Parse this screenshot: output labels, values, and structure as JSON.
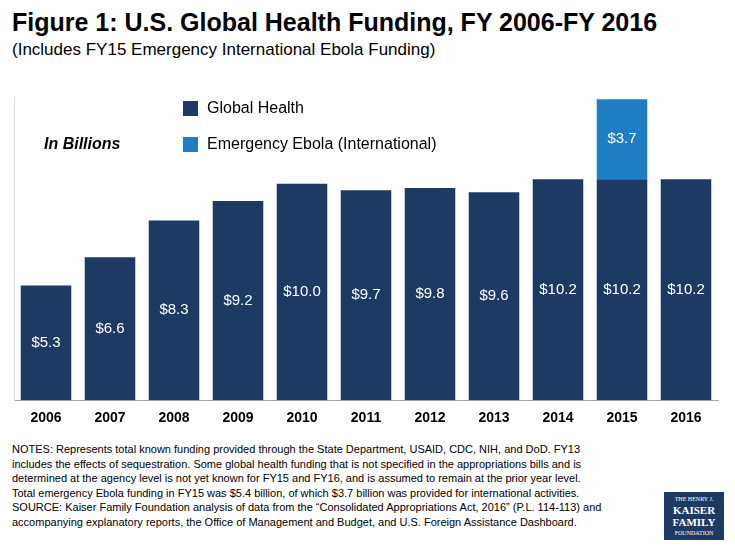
{
  "chart_data": {
    "type": "bar",
    "title": "Figure 1: U.S. Global Health Funding, FY 2006-FY 2016",
    "subtitle": "(Includes FY15 Emergency International Ebola Funding)",
    "annotation": "In Billions",
    "categories": [
      "2006",
      "2007",
      "2008",
      "2009",
      "2010",
      "2011",
      "2012",
      "2013",
      "2014",
      "2015",
      "2016"
    ],
    "series": [
      {
        "name": "Global Health",
        "color": "#1c3a63",
        "values": [
          5.3,
          6.6,
          8.3,
          9.2,
          10.0,
          9.7,
          9.8,
          9.6,
          10.2,
          10.2,
          10.2
        ],
        "value_labels": [
          "$5.3",
          "$6.6",
          "$8.3",
          "$9.2",
          "$10.0",
          "$9.7",
          "$9.8",
          "$9.6",
          "$10.2",
          "$10.2",
          "$10.2"
        ]
      },
      {
        "name": "Emergency Ebola (International)",
        "color": "#1f7dc4",
        "values": [
          null,
          null,
          null,
          null,
          null,
          null,
          null,
          null,
          null,
          3.7,
          null
        ],
        "value_labels": [
          null,
          null,
          null,
          null,
          null,
          null,
          null,
          null,
          null,
          "$3.7",
          null
        ]
      }
    ],
    "stacked": true,
    "data_labels": true,
    "tick_labels": "x",
    "grid": false,
    "legend": "top-left",
    "ylim": [
      0,
      14
    ],
    "notes": [
      "NOTES: Represents total known funding provided through the State Department, USAID, CDC, NIH, and DoD. FY13",
      "includes the effects of sequestration. Some global health funding that is not specified in the appropriations bills and is",
      "determined at the agency level is not yet known for FY15 and FY16, and is assumed to remain at the prior year level.",
      "Total emergency Ebola funding in FY15 was $5.4 billion, of which $3.7 billion was provided for international activities.",
      "SOURCE: Kaiser Family Foundation analysis of data from the “Consolidated Appropriations Act, 2016” (P.L. 114-113) and",
      "accompanying explanatory reports, the Office of Management and Budget, and U.S. Foreign Assistance Dashboard."
    ],
    "logo": [
      "THE HENRY J.",
      "KAISER",
      "FAMILY",
      "FOUNDATION"
    ]
  }
}
